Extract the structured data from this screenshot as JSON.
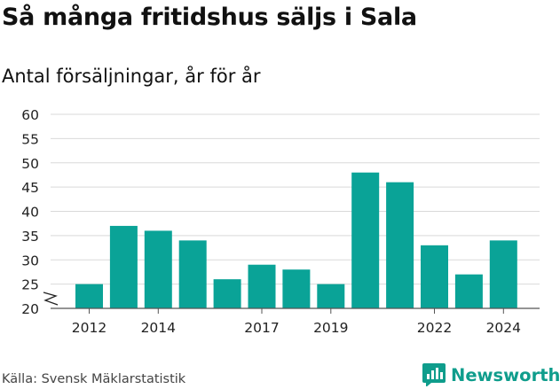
{
  "title": "Så många fritidshus säljs i Sala",
  "subtitle": "Antal försäljningar, år för år",
  "source": "Källa: Svensk Mäklarstatistik",
  "brand": "Newsworthy",
  "colors": {
    "bar": "#0aa397",
    "grid": "#d9d9d9",
    "axis": "#555555",
    "brand": "#0f9d8c"
  },
  "chart_data": {
    "type": "bar",
    "categories": [
      "2012",
      "2013",
      "2014",
      "2015",
      "2016",
      "2017",
      "2018",
      "2019",
      "2020",
      "2021",
      "2022",
      "2023",
      "2024"
    ],
    "values": [
      25,
      37,
      36,
      34,
      26,
      29,
      28,
      25,
      48,
      46,
      33,
      27,
      34
    ],
    "x_tick_labels": [
      "2012",
      "2014",
      "2017",
      "2019",
      "2022",
      "2024"
    ],
    "y_ticks": [
      20,
      25,
      30,
      35,
      40,
      45,
      50,
      55,
      60
    ],
    "ylim": [
      20,
      60
    ],
    "axis_break": true,
    "grid": true
  }
}
